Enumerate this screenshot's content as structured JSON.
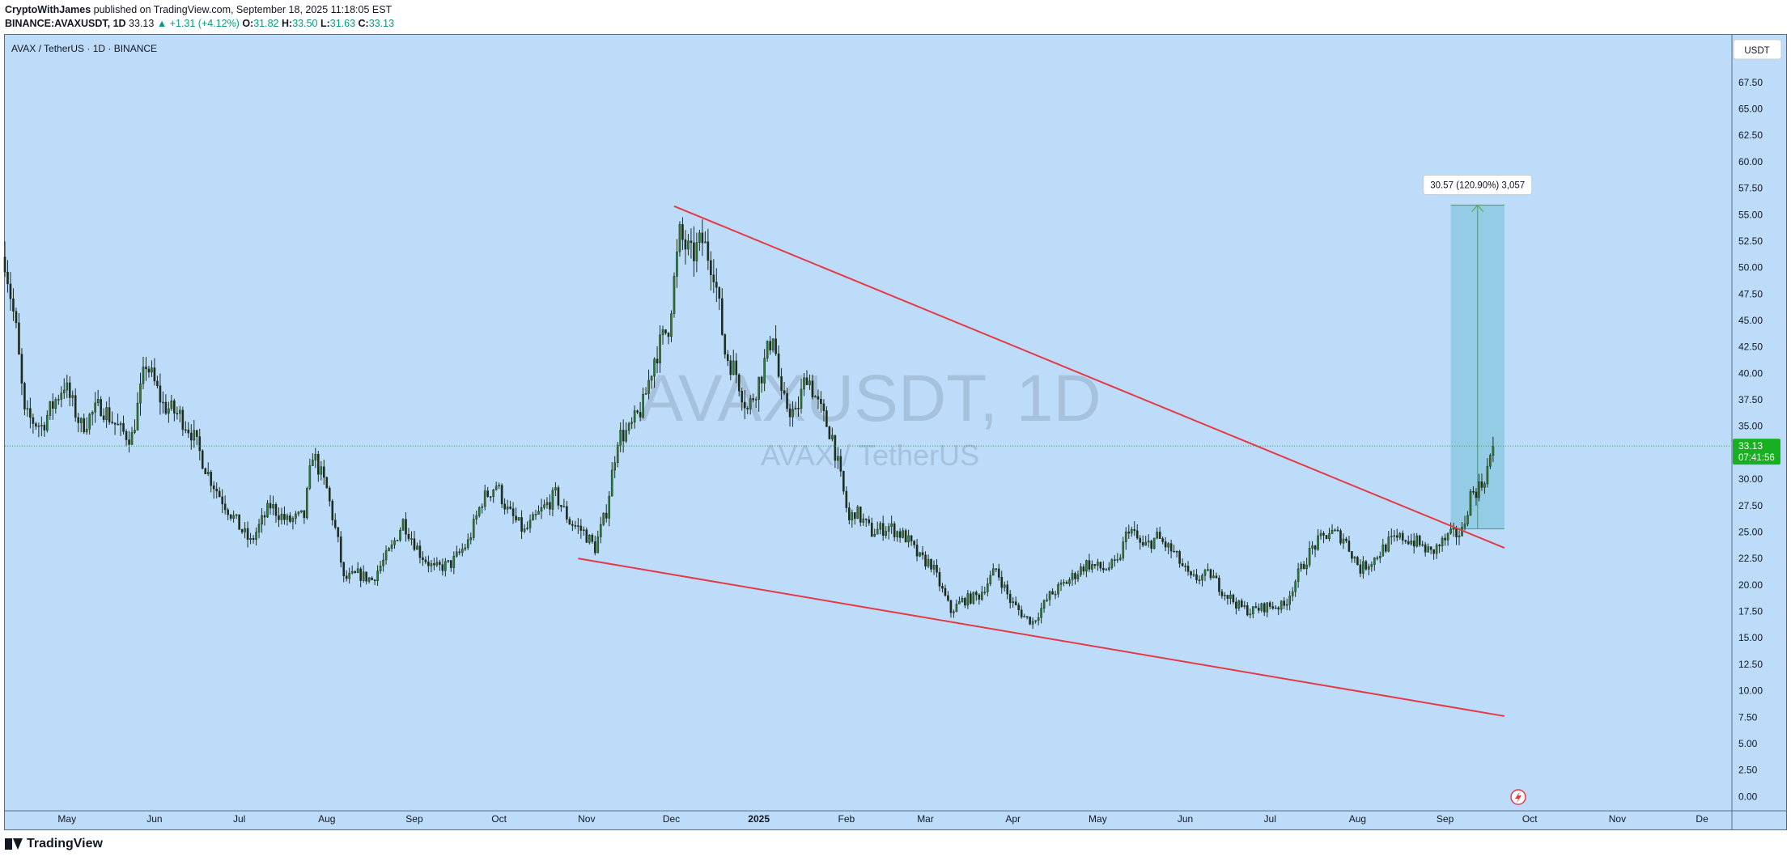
{
  "header": {
    "author": "CryptoWithJames",
    "published": "published on TradingView.com, September 18, 2025 11:18:05 EST",
    "symbol": "BINANCE:AVAXUSDT, 1D",
    "last": "33.13",
    "change": "+1.31 (+4.12%)",
    "o_label": "O:",
    "o": "31.82",
    "h_label": "H:",
    "h": "33.50",
    "l_label": "L:",
    "l": "31.63",
    "c_label": "C:",
    "c": "33.13"
  },
  "footer": {
    "brand": "TradingView"
  },
  "icons": {
    "logo": "tradingview-logo-icon",
    "alert": "lightning-icon"
  },
  "chart_data": {
    "type": "candlestick",
    "legend_title": "AVAX / TetherUS · 1D · BINANCE",
    "watermark_symbol": "AVAXUSDT, 1D",
    "watermark_name": "AVAX / TetherUS",
    "currency_button": "USDT",
    "y_ticks": [
      "67.50",
      "65.00",
      "62.50",
      "60.00",
      "57.50",
      "55.00",
      "52.50",
      "50.00",
      "47.50",
      "45.00",
      "42.50",
      "40.00",
      "37.50",
      "35.00",
      "32.50",
      "30.00",
      "27.50",
      "25.00",
      "22.50",
      "20.00",
      "17.50",
      "15.00",
      "12.50",
      "10.00",
      "7.50",
      "5.00",
      "2.50",
      "0.00"
    ],
    "y_range": [
      -1.2,
      72
    ],
    "x_labels": [
      "May",
      "Jun",
      "Jul",
      "Aug",
      "Sep",
      "Oct",
      "Nov",
      "Dec",
      "2025",
      "Feb",
      "Mar",
      "Apr",
      "May",
      "Jun",
      "Jul",
      "Aug",
      "Sep",
      "Oct",
      "Nov",
      "De"
    ],
    "x_label_dates": [
      "2024-05-01",
      "2024-06-01",
      "2024-07-01",
      "2024-08-01",
      "2024-09-01",
      "2024-10-01",
      "2024-11-01",
      "2024-12-01",
      "2025-01-01",
      "2025-02-01",
      "2025-03-01",
      "2025-04-01",
      "2025-05-01",
      "2025-06-01",
      "2025-07-01",
      "2025-08-01",
      "2025-09-01",
      "2025-10-01",
      "2025-11-01",
      "2025-12-01"
    ],
    "x_range": [
      "2024-04-09",
      "2025-12-11"
    ],
    "last_price": "33.13",
    "countdown": "07:41:56",
    "price_path": [
      [
        "2024-04-09",
        51.0
      ],
      [
        "2024-04-13",
        44.0
      ],
      [
        "2024-04-16",
        36.0
      ],
      [
        "2024-04-22",
        35.0
      ],
      [
        "2024-04-30",
        39.0
      ],
      [
        "2024-05-06",
        35.0
      ],
      [
        "2024-05-13",
        37.0
      ],
      [
        "2024-05-20",
        34.5
      ],
      [
        "2024-05-24",
        34.0
      ],
      [
        "2024-05-29",
        41.0
      ],
      [
        "2024-06-04",
        37.0
      ],
      [
        "2024-06-10",
        36.0
      ],
      [
        "2024-06-14",
        34.5
      ],
      [
        "2024-06-20",
        30.5
      ],
      [
        "2024-06-24",
        28.5
      ],
      [
        "2024-07-01",
        25.5
      ],
      [
        "2024-07-05",
        24.0
      ],
      [
        "2024-07-12",
        27.5
      ],
      [
        "2024-07-18",
        26.0
      ],
      [
        "2024-07-24",
        26.5
      ],
      [
        "2024-07-27",
        32.5
      ],
      [
        "2024-08-01",
        29.0
      ],
      [
        "2024-08-05",
        24.0
      ],
      [
        "2024-08-07",
        20.5
      ],
      [
        "2024-08-12",
        21.0
      ],
      [
        "2024-08-17",
        20.5
      ],
      [
        "2024-08-24",
        23.5
      ],
      [
        "2024-08-28",
        26.0
      ],
      [
        "2024-09-03",
        23.0
      ],
      [
        "2024-09-08",
        21.5
      ],
      [
        "2024-09-14",
        22.0
      ],
      [
        "2024-09-20",
        24.0
      ],
      [
        "2024-09-25",
        28.0
      ],
      [
        "2024-09-30",
        29.5
      ],
      [
        "2024-10-04",
        27.0
      ],
      [
        "2024-10-10",
        25.0
      ],
      [
        "2024-10-16",
        27.0
      ],
      [
        "2024-10-21",
        28.5
      ],
      [
        "2024-10-26",
        26.0
      ],
      [
        "2024-10-31",
        25.0
      ],
      [
        "2024-11-04",
        23.5
      ],
      [
        "2024-11-08",
        27.0
      ],
      [
        "2024-11-12",
        34.0
      ],
      [
        "2024-11-16",
        34.5
      ],
      [
        "2024-11-21",
        37.0
      ],
      [
        "2024-11-25",
        41.5
      ],
      [
        "2024-11-30",
        44.5
      ],
      [
        "2024-12-04",
        53.0
      ],
      [
        "2024-12-08",
        51.0
      ],
      [
        "2024-12-12",
        52.5
      ],
      [
        "2024-12-16",
        50.0
      ],
      [
        "2024-12-20",
        42.0
      ],
      [
        "2024-12-24",
        40.0
      ],
      [
        "2024-12-28",
        36.5
      ],
      [
        "2025-01-02",
        40.0
      ],
      [
        "2025-01-06",
        44.0
      ],
      [
        "2025-01-09",
        37.5
      ],
      [
        "2025-01-14",
        36.0
      ],
      [
        "2025-01-18",
        40.0
      ],
      [
        "2025-01-22",
        37.0
      ],
      [
        "2025-01-27",
        34.0
      ],
      [
        "2025-02-02",
        26.0
      ],
      [
        "2025-02-04",
        27.0
      ],
      [
        "2025-02-10",
        25.0
      ],
      [
        "2025-02-16",
        25.5
      ],
      [
        "2025-02-22",
        24.5
      ],
      [
        "2025-02-27",
        22.5
      ],
      [
        "2025-03-03",
        22.0
      ],
      [
        "2025-03-10",
        17.5
      ],
      [
        "2025-03-14",
        18.5
      ],
      [
        "2025-03-20",
        19.0
      ],
      [
        "2025-03-26",
        21.5
      ],
      [
        "2025-03-31",
        18.5
      ],
      [
        "2025-04-05",
        17.0
      ],
      [
        "2025-04-08",
        16.5
      ],
      [
        "2025-04-14",
        19.0
      ],
      [
        "2025-04-21",
        20.5
      ],
      [
        "2025-04-27",
        22.0
      ],
      [
        "2025-05-03",
        21.5
      ],
      [
        "2025-05-08",
        22.0
      ],
      [
        "2025-05-12",
        25.5
      ],
      [
        "2025-05-17",
        23.5
      ],
      [
        "2025-05-22",
        24.5
      ],
      [
        "2025-05-28",
        23.0
      ],
      [
        "2025-06-03",
        20.5
      ],
      [
        "2025-06-10",
        21.0
      ],
      [
        "2025-06-14",
        19.5
      ],
      [
        "2025-06-20",
        18.0
      ],
      [
        "2025-06-24",
        17.5
      ],
      [
        "2025-06-30",
        18.0
      ],
      [
        "2025-07-06",
        18.0
      ],
      [
        "2025-07-11",
        21.0
      ],
      [
        "2025-07-16",
        23.5
      ],
      [
        "2025-07-22",
        25.0
      ],
      [
        "2025-07-27",
        24.5
      ],
      [
        "2025-08-02",
        21.5
      ],
      [
        "2025-08-07",
        22.5
      ],
      [
        "2025-08-12",
        24.0
      ],
      [
        "2025-08-17",
        24.5
      ],
      [
        "2025-08-22",
        24.0
      ],
      [
        "2025-08-27",
        23.0
      ],
      [
        "2025-09-02",
        24.5
      ],
      [
        "2025-09-07",
        25.0
      ],
      [
        "2025-09-10",
        28.5
      ],
      [
        "2025-09-14",
        29.5
      ],
      [
        "2025-09-16",
        31.0
      ],
      [
        "2025-09-18",
        33.13
      ]
    ],
    "trendlines": [
      {
        "from": [
          "2024-12-02",
          55.8
        ],
        "to": [
          "2025-09-22",
          23.5
        ],
        "color": "#e53946"
      },
      {
        "from": [
          "2024-10-29",
          22.5
        ],
        "to": [
          "2025-09-22",
          7.6
        ],
        "color": "#e53946"
      }
    ],
    "measure": {
      "from_date": "2025-09-03",
      "to_date": "2025-09-22",
      "low": 25.3,
      "high": 55.9,
      "label": "30.57 (120.90%) 3,057"
    },
    "colors": {
      "background": "#bcdcfa",
      "candle": "#1e2c1e",
      "up_body": "#2e7d32",
      "trendline": "#e53946",
      "measure_fill": "#8ec9e0",
      "measure_line": "#4caf50",
      "price_tag": "#17b020"
    }
  }
}
